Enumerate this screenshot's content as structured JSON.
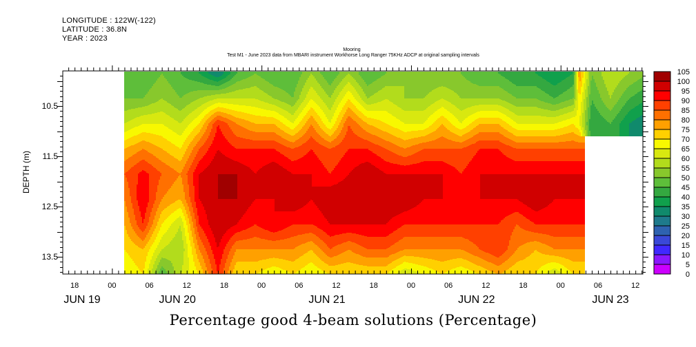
{
  "header": {
    "longitude": "LONGITUDE : 122W(-122)",
    "latitude": "LATITUDE : 36.8N",
    "year": "YEAR : 2023"
  },
  "chart_data": {
    "type": "heatmap",
    "title": "Mooring",
    "subtitle": "Test M1 - June 2023 data from MBARI instrument Workhorse Long Ranger 75KHz ADCP at original sampling intervals",
    "xlabel": "",
    "ylabel": "DEPTH (m)",
    "bottom_title": "Percentage good 4-beam solutions (Percentage)",
    "x_units": "hours since JUN 20 00:00",
    "xlim": [
      -7.9,
      85.2
    ],
    "ylim": [
      9.8,
      13.84
    ],
    "y_inverted": true,
    "x_tick_labels": [
      {
        "h": -6,
        "label": "18"
      },
      {
        "h": 0,
        "label": "00"
      },
      {
        "h": 6,
        "label": "06"
      },
      {
        "h": 12,
        "label": "12"
      },
      {
        "h": 18,
        "label": "18"
      },
      {
        "h": 24,
        "label": "00"
      },
      {
        "h": 30,
        "label": "06"
      },
      {
        "h": 36,
        "label": "12"
      },
      {
        "h": 42,
        "label": "18"
      },
      {
        "h": 48,
        "label": "00"
      },
      {
        "h": 54,
        "label": "06"
      },
      {
        "h": 60,
        "label": "12"
      },
      {
        "h": 66,
        "label": "18"
      },
      {
        "h": 72,
        "label": "00"
      },
      {
        "h": 78,
        "label": "06"
      },
      {
        "h": 84,
        "label": "12"
      }
    ],
    "date_labels": [
      {
        "h": -4.8,
        "label": "JUN 19"
      },
      {
        "h": 10.5,
        "label": "JUN 20"
      },
      {
        "h": 34.5,
        "label": "JUN 21"
      },
      {
        "h": 58.5,
        "label": "JUN 22"
      },
      {
        "h": 80,
        "label": "JUN 23"
      }
    ],
    "y_ticks": [
      10.5,
      11.5,
      12.5,
      13.5
    ],
    "y_tick_labels": [
      "10.5",
      "11.5",
      "12.5",
      "13.5"
    ],
    "depths": [
      9.85,
      10.35,
      10.85,
      11.35,
      11.85,
      12.35,
      12.85,
      13.35,
      13.85
    ],
    "times": [
      2,
      5,
      8,
      11,
      14,
      17,
      20,
      23,
      26,
      29,
      32,
      35,
      38,
      41,
      44,
      47,
      50,
      53,
      56,
      59,
      62,
      65,
      68,
      71,
      74,
      75,
      77,
      80,
      83,
      86
    ],
    "values": [
      [
        45,
        50,
        60,
        75,
        85,
        80,
        75,
        70,
        65
      ],
      [
        45,
        50,
        65,
        80,
        92,
        95,
        90,
        75,
        70
      ],
      [
        50,
        55,
        65,
        75,
        85,
        80,
        70,
        60,
        45
      ],
      [
        45,
        50,
        60,
        70,
        80,
        75,
        60,
        55,
        60
      ],
      [
        40,
        55,
        70,
        85,
        95,
        95,
        90,
        80,
        70
      ],
      [
        30,
        60,
        90,
        95,
        100,
        100,
        100,
        95,
        90
      ],
      [
        45,
        60,
        80,
        90,
        100,
        100,
        95,
        80,
        70
      ],
      [
        50,
        60,
        75,
        90,
        95,
        95,
        90,
        80,
        70
      ],
      [
        45,
        55,
        75,
        90,
        100,
        95,
        95,
        80,
        65
      ],
      [
        45,
        50,
        65,
        85,
        95,
        100,
        90,
        80,
        70
      ],
      [
        55,
        65,
        80,
        90,
        95,
        95,
        90,
        75,
        65
      ],
      [
        45,
        55,
        65,
        85,
        90,
        100,
        95,
        85,
        70
      ],
      [
        55,
        70,
        85,
        90,
        95,
        100,
        95,
        80,
        70
      ],
      [
        45,
        55,
        75,
        90,
        100,
        100,
        95,
        85,
        70
      ],
      [
        50,
        60,
        70,
        85,
        95,
        100,
        95,
        85,
        70
      ],
      [
        55,
        55,
        65,
        80,
        95,
        100,
        90,
        80,
        60
      ],
      [
        50,
        55,
        65,
        85,
        95,
        95,
        90,
        80,
        65
      ],
      [
        50,
        60,
        75,
        85,
        95,
        95,
        90,
        80,
        70
      ],
      [
        50,
        55,
        65,
        85,
        90,
        95,
        90,
        80,
        65
      ],
      [
        45,
        55,
        75,
        90,
        95,
        95,
        90,
        85,
        70
      ],
      [
        45,
        55,
        75,
        90,
        95,
        95,
        90,
        90,
        75
      ],
      [
        40,
        50,
        65,
        85,
        95,
        95,
        85,
        80,
        70
      ],
      [
        40,
        50,
        65,
        85,
        95,
        100,
        90,
        75,
        70
      ],
      [
        35,
        45,
        65,
        85,
        95,
        95,
        90,
        80,
        60
      ],
      [
        40,
        50,
        70,
        85,
        95,
        95,
        90,
        80,
        70
      ],
      [
        80,
        70,
        65,
        85,
        95,
        95,
        90,
        80,
        70
      ],
      [
        50,
        45,
        40,
        null,
        null,
        null,
        null,
        null,
        null
      ],
      [
        60,
        55,
        45,
        null,
        null,
        null,
        null,
        null,
        null
      ],
      [
        55,
        45,
        35,
        null,
        null,
        null,
        null,
        null,
        null
      ],
      [
        50,
        40,
        30,
        null,
        null,
        null,
        null,
        null,
        null
      ]
    ],
    "colorbar": {
      "levels": [
        0,
        5,
        10,
        15,
        20,
        25,
        30,
        35,
        40,
        45,
        50,
        55,
        60,
        65,
        70,
        75,
        80,
        85,
        90,
        95,
        100,
        105
      ],
      "labels": [
        "0",
        "5",
        "10",
        "15",
        "20",
        "25",
        "30",
        "35",
        "40",
        "45",
        "50",
        "55",
        "60",
        "65",
        "70",
        "75",
        "80",
        "85",
        "90",
        "95",
        "100",
        "105"
      ],
      "colors": [
        "#cc00ff",
        "#8a18ff",
        "#4028ff",
        "#3a48d8",
        "#2e62b0",
        "#1e7a8c",
        "#108a6c",
        "#10a04c",
        "#34a840",
        "#5ebe3a",
        "#88c82c",
        "#b2dc1c",
        "#d8e810",
        "#f8f800",
        "#ffd000",
        "#ffa000",
        "#ff7000",
        "#ff4000",
        "#ff0000",
        "#d00000",
        "#a00000"
      ]
    }
  }
}
